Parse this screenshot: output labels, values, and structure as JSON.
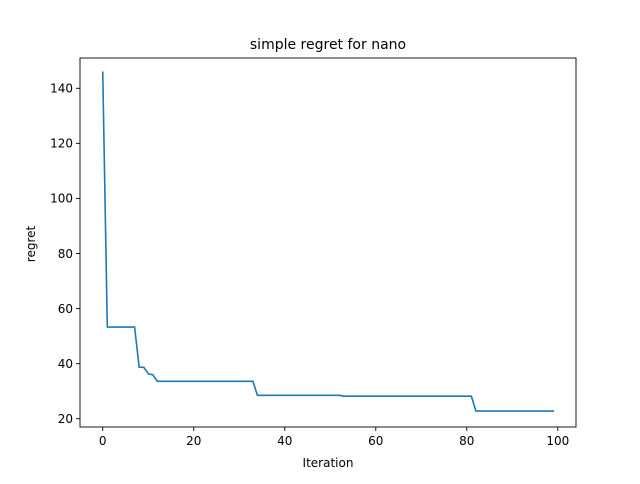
{
  "chart_data": {
    "type": "line",
    "title": "simple regret for nano",
    "xlabel": "Iteration",
    "ylabel": "regret",
    "xlim": [
      -5,
      104
    ],
    "ylim": [
      17,
      151
    ],
    "grid": false,
    "xticks": [
      0,
      20,
      40,
      60,
      80,
      100
    ],
    "yticks": [
      20,
      40,
      60,
      80,
      100,
      120,
      140
    ],
    "series": [
      {
        "color": "#1f77b4",
        "x": [
          0,
          1,
          7,
          8,
          9,
          10,
          11,
          12,
          33,
          34,
          52,
          53,
          81,
          82,
          99
        ],
        "y": [
          145.8,
          53.3,
          53.3,
          38.7,
          38.7,
          36.3,
          36.0,
          33.6,
          33.6,
          28.5,
          28.5,
          28.2,
          28.2,
          22.8,
          22.8
        ]
      }
    ]
  }
}
